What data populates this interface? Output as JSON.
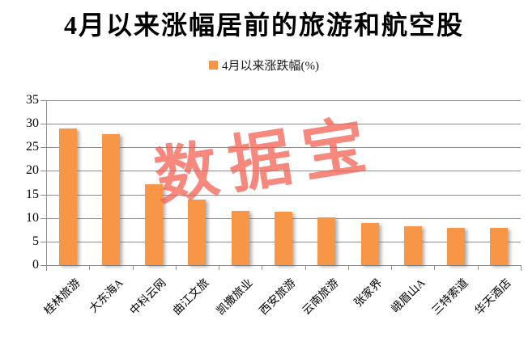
{
  "chart": {
    "title": "4月以来涨幅居前的旅游和航空股",
    "legend_label": "4月以来涨跌幅(%)",
    "watermark": "数据宝"
  },
  "chart_data": {
    "type": "bar",
    "title": "4月以来涨幅居前的旅游和航空股",
    "legend": [
      "4月以来涨跌幅(%)"
    ],
    "legend_position": "top-center",
    "categories": [
      "桂林旅游",
      "大东海A",
      "中科云网",
      "曲江文旅",
      "凯撒旅业",
      "西安旅游",
      "云南旅游",
      "张家界",
      "峨眉山A",
      "三特索道",
      "华天酒店"
    ],
    "values": [
      29.0,
      27.8,
      17.2,
      13.9,
      11.5,
      11.4,
      10.2,
      9.0,
      8.3,
      7.9,
      7.9
    ],
    "xlabel": "",
    "ylabel": "",
    "ylim": [
      0,
      35
    ],
    "ytick_interval": 5,
    "grid": true,
    "x_label_rotation_deg": 45,
    "watermark": "数据宝",
    "colors": {
      "bar": "#F79646",
      "gridline": "#8E8E8E",
      "axis": "#8E8E8E",
      "text": "#000000",
      "watermark": "rgba(244,90,75,0.72)"
    }
  }
}
